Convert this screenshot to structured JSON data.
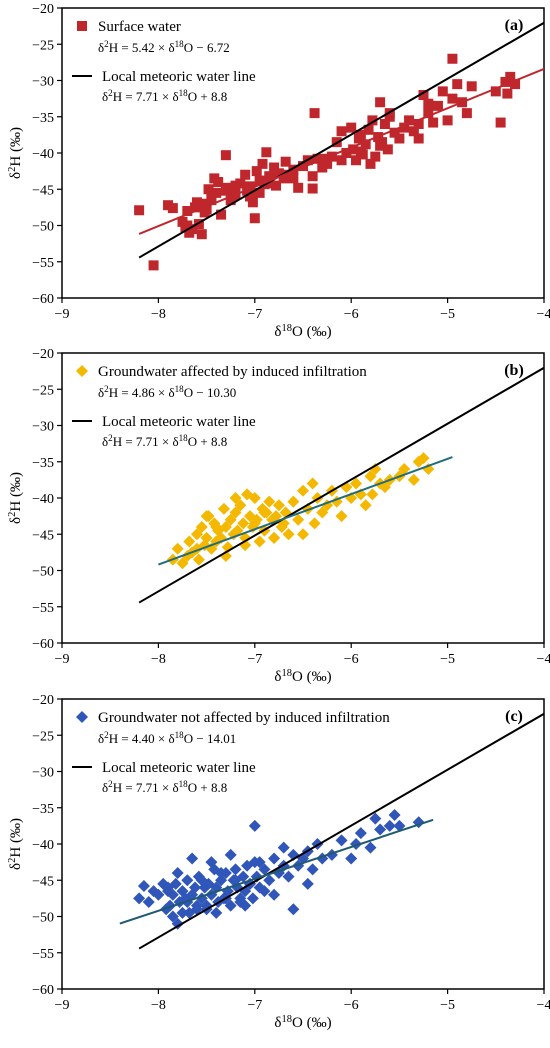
{
  "chart_data": [
    {
      "type": "scatter",
      "panel_label": "(a)",
      "xlabel": "δ18O (‰)",
      "xlabel_parts": {
        "pre": "δ",
        "sup": "18",
        "post": "O (‰)"
      },
      "ylabel": "δ2H (‰)",
      "ylabel_parts": {
        "pre": "δ",
        "sup": "2",
        "post": "H (‰)"
      },
      "xlim": [
        -9,
        -4
      ],
      "ylim": [
        -60,
        -20
      ],
      "xticks": [
        -9,
        -8,
        -7,
        -6,
        -5,
        -4
      ],
      "yticks": [
        -20,
        -25,
        -30,
        -35,
        -40,
        -45,
        -50,
        -55,
        -60
      ],
      "xtick_labels": [
        "−9",
        "−8",
        "−7",
        "−6",
        "−5",
        "−4"
      ],
      "ytick_labels": [
        "−20",
        "−25",
        "−30",
        "−35",
        "−40",
        "−45",
        "−50",
        "−55",
        "−60"
      ],
      "grid": false,
      "legend_position": "top-left",
      "series": [
        {
          "name": "Surface water",
          "marker": "square",
          "color": "#c0272d",
          "equation_parts": {
            "pre": "δ",
            "sup": "2",
            "mid": "H = 5.42 × δ",
            "sup2": "18",
            "post": "O − 6.72"
          },
          "fit": {
            "slope": 5.42,
            "intercept": -6.72,
            "x_range": [
              -8.2,
              -4.0
            ],
            "color": "#c0272d"
          },
          "x": [
            -8.2,
            -8.05,
            -7.9,
            -7.85,
            -7.75,
            -7.72,
            -7.7,
            -7.68,
            -7.65,
            -7.62,
            -7.6,
            -7.58,
            -7.55,
            -7.52,
            -7.5,
            -7.48,
            -7.45,
            -7.42,
            -7.4,
            -7.38,
            -7.35,
            -7.3,
            -7.28,
            -7.25,
            -7.2,
            -7.15,
            -7.1,
            -7.08,
            -7.05,
            -7.02,
            -7.0,
            -6.98,
            -6.95,
            -6.92,
            -6.9,
            -6.88,
            -6.85,
            -6.8,
            -6.78,
            -6.75,
            -6.7,
            -6.68,
            -6.65,
            -6.6,
            -6.55,
            -6.5,
            -6.45,
            -6.4,
            -6.38,
            -6.35,
            -6.3,
            -6.25,
            -6.2,
            -6.15,
            -6.1,
            -6.05,
            -6.0,
            -5.98,
            -5.95,
            -5.92,
            -5.9,
            -5.88,
            -5.85,
            -5.82,
            -5.8,
            -5.78,
            -5.75,
            -5.72,
            -5.7,
            -5.68,
            -5.65,
            -5.62,
            -5.6,
            -5.55,
            -5.5,
            -5.45,
            -5.4,
            -5.35,
            -5.3,
            -5.25,
            -5.2,
            -5.15,
            -5.1,
            -5.05,
            -5.0,
            -4.95,
            -4.9,
            -4.85,
            -4.8,
            -4.75,
            -4.5,
            -4.45,
            -4.4,
            -4.38,
            -4.35,
            -4.3,
            -7.45,
            -7.2,
            -6.95,
            -6.6,
            -6.1,
            -5.7,
            -5.3,
            -4.95,
            -7.7,
            -7.3,
            -6.4,
            -5.9,
            -5.6,
            -5.2,
            -6.85,
            -7.55,
            -7.05,
            -6.25
          ],
          "y": [
            -47.9,
            -55.5,
            -47.2,
            -47.6,
            -49.5,
            -50.2,
            -48.0,
            -51.0,
            -50.5,
            -47.5,
            -46.8,
            -49.8,
            -51.2,
            -48.2,
            -47.8,
            -45.0,
            -46.0,
            -43.5,
            -45.5,
            -44.0,
            -48.5,
            -40.3,
            -44.8,
            -46.5,
            -45.8,
            -44.2,
            -43.0,
            -45.2,
            -44.6,
            -46.8,
            -49.0,
            -42.5,
            -43.8,
            -41.5,
            -44.3,
            -39.9,
            -43.2,
            -42.0,
            -44.5,
            -42.8,
            -43.5,
            -41.2,
            -43.0,
            -42.3,
            -44.8,
            -41.8,
            -41.0,
            -44.9,
            -34.5,
            -40.8,
            -42.0,
            -41.5,
            -40.5,
            -38.5,
            -37.0,
            -40.0,
            -36.5,
            -39.5,
            -41.0,
            -38.0,
            -37.5,
            -40.2,
            -38.8,
            -36.8,
            -41.5,
            -35.5,
            -40.5,
            -37.8,
            -33.0,
            -38.5,
            -36.0,
            -39.5,
            -35.0,
            -37.2,
            -38.0,
            -36.5,
            -35.5,
            -37.0,
            -36.0,
            -32.0,
            -34.5,
            -35.8,
            -33.5,
            -31.5,
            -35.5,
            -27.0,
            -30.5,
            -33.0,
            -34.5,
            -30.8,
            -31.5,
            -35.8,
            -30.2,
            -31.8,
            -29.5,
            -30.5,
            -46.5,
            -44.5,
            -45.5,
            -43.5,
            -41.0,
            -39.0,
            -38.0,
            -32.5,
            -50.0,
            -45.2,
            -43.2,
            -39.8,
            -34.5,
            -33.2,
            -44.2,
            -47.0,
            -46.0,
            -40.8
          ]
        },
        {
          "name": "Local meteoric water line",
          "type": "line",
          "color": "#000000",
          "equation_parts": {
            "pre": "δ",
            "sup": "2",
            "mid": "H = 7.71 × δ",
            "sup2": "18",
            "post": "O + 8.8"
          },
          "fit": {
            "slope": 7.71,
            "intercept": 8.8,
            "x_range": [
              -8.2,
              -4.0
            ]
          }
        }
      ]
    },
    {
      "type": "scatter",
      "panel_label": "(b)",
      "xlabel": "δ18O (‰)",
      "xlabel_parts": {
        "pre": "δ",
        "sup": "18",
        "post": "O (‰)"
      },
      "ylabel": "δ2H (‰)",
      "ylabel_parts": {
        "pre": "δ",
        "sup": "2",
        "post": "H (‰)"
      },
      "xlim": [
        -9,
        -4
      ],
      "ylim": [
        -60,
        -20
      ],
      "xticks": [
        -9,
        -8,
        -7,
        -6,
        -5,
        -4
      ],
      "yticks": [
        -20,
        -25,
        -30,
        -35,
        -40,
        -45,
        -50,
        -55,
        -60
      ],
      "xtick_labels": [
        "−9",
        "−8",
        "−7",
        "−6",
        "−5",
        "−4"
      ],
      "ytick_labels": [
        "−20",
        "−25",
        "−30",
        "−35",
        "−40",
        "−45",
        "−50",
        "−55",
        "−60"
      ],
      "grid": false,
      "legend_position": "top-left",
      "series": [
        {
          "name": "Groundwater affected by induced infiltration",
          "marker": "diamond",
          "color": "#f5b800",
          "equation_parts": {
            "pre": "δ",
            "sup": "2",
            "mid": "H = 4.86 × δ",
            "sup2": "18",
            "post": "O − 10.30"
          },
          "fit": {
            "slope": 4.86,
            "intercept": -10.3,
            "x_range": [
              -8.0,
              -4.95
            ],
            "color": "#1f6e7a"
          },
          "x": [
            -7.85,
            -7.8,
            -7.75,
            -7.7,
            -7.68,
            -7.65,
            -7.6,
            -7.58,
            -7.55,
            -7.52,
            -7.5,
            -7.48,
            -7.45,
            -7.42,
            -7.4,
            -7.38,
            -7.35,
            -7.32,
            -7.3,
            -7.28,
            -7.25,
            -7.22,
            -7.2,
            -7.18,
            -7.15,
            -7.12,
            -7.1,
            -7.08,
            -7.05,
            -7.02,
            -7.0,
            -6.98,
            -6.95,
            -6.92,
            -6.9,
            -6.88,
            -6.85,
            -6.82,
            -6.8,
            -6.78,
            -6.75,
            -6.72,
            -6.7,
            -6.68,
            -6.65,
            -6.6,
            -6.55,
            -6.5,
            -6.45,
            -6.4,
            -6.38,
            -6.35,
            -6.3,
            -6.25,
            -6.2,
            -6.15,
            -6.1,
            -6.05,
            -6.0,
            -5.95,
            -5.9,
            -5.85,
            -5.8,
            -5.78,
            -5.75,
            -5.7,
            -5.65,
            -5.6,
            -5.5,
            -5.45,
            -5.35,
            -5.3,
            -5.25,
            -5.2,
            -7.6,
            -7.3,
            -7.0,
            -6.8,
            -6.5,
            -7.4,
            -7.1,
            -6.9,
            -7.5,
            -7.2
          ],
          "y": [
            -48.5,
            -47.0,
            -49.0,
            -48.0,
            -46.0,
            -47.5,
            -45.0,
            -48.5,
            -44.0,
            -46.5,
            -45.5,
            -42.5,
            -47.0,
            -43.5,
            -46.0,
            -44.5,
            -45.5,
            -41.5,
            -44.0,
            -46.8,
            -43.0,
            -45.0,
            -42.0,
            -44.5,
            -41.0,
            -43.5,
            -45.5,
            -39.5,
            -42.5,
            -44.0,
            -40.0,
            -43.0,
            -46.0,
            -41.5,
            -44.5,
            -42.0,
            -40.5,
            -43.0,
            -45.5,
            -42.5,
            -41.0,
            -44.0,
            -43.5,
            -42.0,
            -45.0,
            -40.5,
            -43.0,
            -39.0,
            -41.5,
            -38.0,
            -43.5,
            -40.0,
            -42.0,
            -41.0,
            -39.0,
            -40.5,
            -42.5,
            -38.5,
            -40.0,
            -38.0,
            -39.5,
            -41.0,
            -37.0,
            -39.5,
            -36.0,
            -38.0,
            -38.5,
            -37.5,
            -37.0,
            -36.0,
            -37.5,
            -35.0,
            -34.5,
            -36.0,
            -47.0,
            -48.0,
            -43.5,
            -45.5,
            -45.0,
            -44.0,
            -46.5,
            -42.0,
            -42.5,
            -40.0
          ]
        },
        {
          "name": "Local meteoric water line",
          "type": "line",
          "color": "#000000",
          "equation_parts": {
            "pre": "δ",
            "sup": "2",
            "mid": "H = 7.71 × δ",
            "sup2": "18",
            "post": "O + 8.8"
          },
          "fit": {
            "slope": 7.71,
            "intercept": 8.8,
            "x_range": [
              -8.2,
              -4.0
            ]
          }
        }
      ]
    },
    {
      "type": "scatter",
      "panel_label": "(c)",
      "xlabel": "δ18O (‰)",
      "xlabel_parts": {
        "pre": "δ",
        "sup": "18",
        "post": "O (‰)"
      },
      "ylabel": "δ2H (‰)",
      "ylabel_parts": {
        "pre": "δ",
        "sup": "2",
        "post": "H (‰)"
      },
      "xlim": [
        -9,
        -4
      ],
      "ylim": [
        -60,
        -20
      ],
      "xticks": [
        -9,
        -8,
        -7,
        -6,
        -5,
        -4
      ],
      "yticks": [
        -20,
        -25,
        -30,
        -35,
        -40,
        -45,
        -50,
        -55,
        -60
      ],
      "xtick_labels": [
        "−9",
        "−8",
        "−7",
        "−6",
        "−5",
        "−4"
      ],
      "ytick_labels": [
        "−20",
        "−25",
        "−30",
        "−35",
        "−40",
        "−45",
        "−50",
        "−55",
        "−60"
      ],
      "grid": false,
      "legend_position": "top-left",
      "series": [
        {
          "name": "Groundwater not affected by induced infiltration",
          "marker": "diamond",
          "color": "#2f56b8",
          "equation_parts": {
            "pre": "δ",
            "sup": "2",
            "mid": "H = 4.40 × δ",
            "sup2": "18",
            "post": "O − 14.01"
          },
          "fit": {
            "slope": 4.4,
            "intercept": -14.01,
            "x_range": [
              -8.4,
              -5.15
            ],
            "color": "#1f5a70"
          },
          "x": [
            -8.2,
            -8.15,
            -8.1,
            -8.05,
            -8.0,
            -7.95,
            -7.92,
            -7.9,
            -7.88,
            -7.85,
            -7.82,
            -7.8,
            -7.78,
            -7.75,
            -7.72,
            -7.7,
            -7.68,
            -7.65,
            -7.62,
            -7.6,
            -7.58,
            -7.55,
            -7.52,
            -7.5,
            -7.48,
            -7.45,
            -7.42,
            -7.4,
            -7.38,
            -7.35,
            -7.32,
            -7.3,
            -7.28,
            -7.25,
            -7.22,
            -7.2,
            -7.18,
            -7.15,
            -7.12,
            -7.1,
            -7.08,
            -7.05,
            -7.02,
            -7.0,
            -6.98,
            -6.95,
            -6.9,
            -6.85,
            -6.8,
            -6.75,
            -6.7,
            -6.65,
            -6.6,
            -6.55,
            -6.5,
            -6.45,
            -6.4,
            -6.35,
            -6.3,
            -6.2,
            -6.1,
            -6.0,
            -5.95,
            -5.9,
            -5.8,
            -5.75,
            -5.7,
            -5.6,
            -5.55,
            -5.5,
            -5.3,
            -7.85,
            -7.6,
            -7.4,
            -7.15,
            -7.9,
            -7.7,
            -7.5,
            -7.3,
            -7.1,
            -6.9,
            -7.8,
            -7.55,
            -7.35,
            -7.2,
            -7.05,
            -6.8,
            -7.65,
            -7.45,
            -7.25,
            -6.95,
            -6.6,
            -7.75,
            -7.0,
            -6.7,
            -6.45
          ],
          "y": [
            -47.5,
            -45.8,
            -48.0,
            -46.5,
            -47.0,
            -45.5,
            -49.0,
            -46.0,
            -48.5,
            -47.0,
            -45.5,
            -51.0,
            -48.0,
            -46.5,
            -47.5,
            -45.0,
            -49.5,
            -47.0,
            -46.0,
            -48.5,
            -44.5,
            -47.5,
            -46.0,
            -49.0,
            -45.5,
            -47.0,
            -43.5,
            -46.0,
            -48.0,
            -45.0,
            -47.5,
            -44.0,
            -46.5,
            -48.5,
            -45.0,
            -43.5,
            -46.0,
            -47.5,
            -44.5,
            -46.5,
            -43.0,
            -45.5,
            -47.5,
            -42.5,
            -44.5,
            -46.0,
            -43.5,
            -45.0,
            -42.0,
            -44.0,
            -43.0,
            -44.5,
            -41.5,
            -43.0,
            -42.0,
            -41.0,
            -43.5,
            -40.0,
            -42.0,
            -41.5,
            -39.5,
            -42.0,
            -40.0,
            -38.5,
            -40.5,
            -36.5,
            -38.0,
            -37.5,
            -36.0,
            -37.5,
            -37.0,
            -50.0,
            -49.0,
            -49.5,
            -48.0,
            -46.5,
            -48.0,
            -48.5,
            -47.5,
            -48.5,
            -46.5,
            -44.0,
            -45.0,
            -44.0,
            -45.0,
            -45.5,
            -47.0,
            -42.0,
            -42.5,
            -41.5,
            -42.5,
            -49.0,
            -49.5,
            -37.5,
            -40.5,
            -45.5
          ]
        },
        {
          "name": "Local meteoric water line",
          "type": "line",
          "color": "#000000",
          "equation_parts": {
            "pre": "δ",
            "sup": "2",
            "mid": "H = 7.71 × δ",
            "sup2": "18",
            "post": "O + 8.8"
          },
          "fit": {
            "slope": 7.71,
            "intercept": 8.8,
            "x_range": [
              -8.2,
              -4.0
            ]
          }
        }
      ]
    }
  ]
}
